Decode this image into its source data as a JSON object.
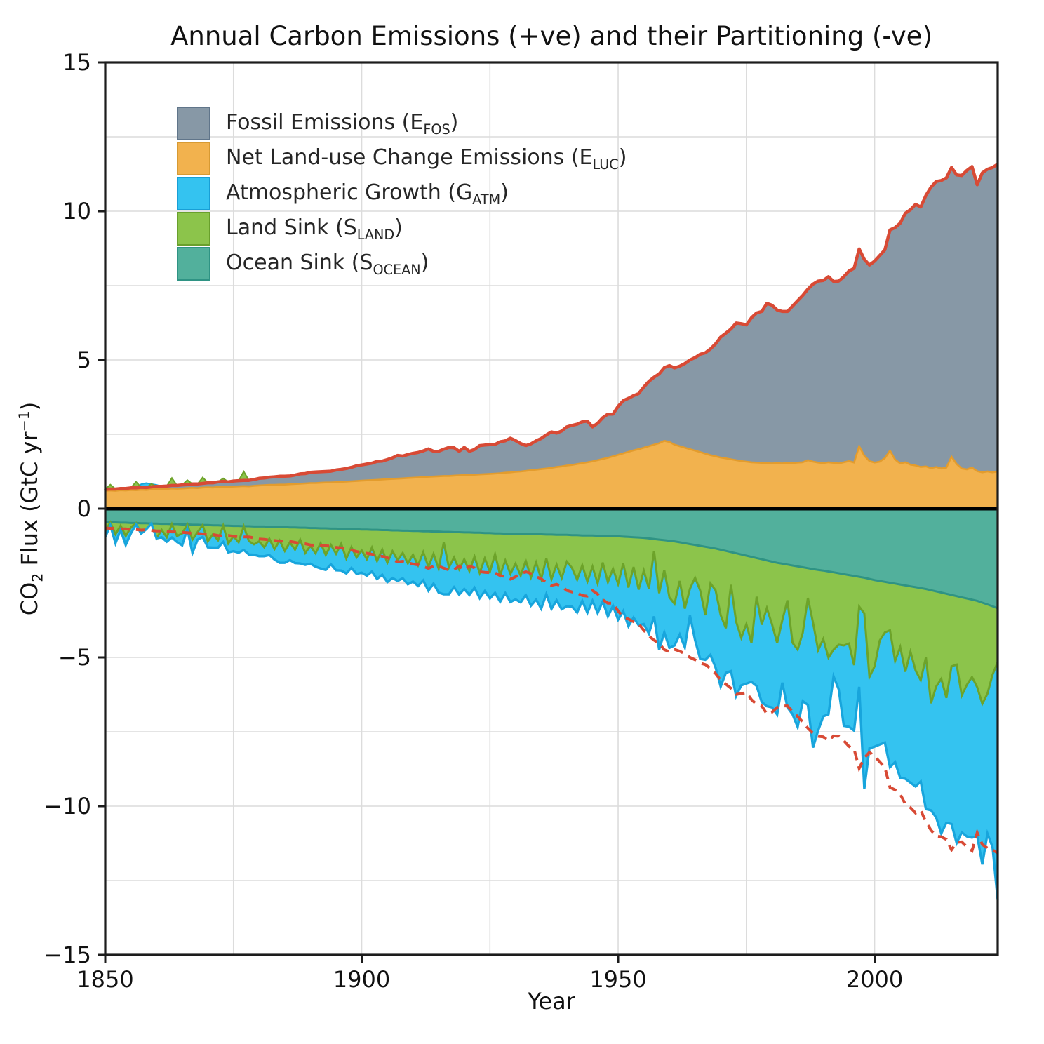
{
  "page": {
    "title": "Annual Carbon Emissions (+ve) and their Partitioning (-ve)"
  },
  "axes": {
    "x_label": "Year",
    "y_label_parts": {
      "pre": "CO",
      "sub": "2",
      "mid": " Flux (GtC yr",
      "sup": "−1",
      "post": ")"
    },
    "x_tick_values": [
      1850,
      1900,
      1950,
      2000
    ],
    "x_tick_labels": [
      "1850",
      "1900",
      "1950",
      "2000"
    ],
    "y_tick_values": [
      15,
      10,
      5,
      0,
      -5,
      -10,
      -15
    ],
    "y_tick_labels": [
      "15",
      "10",
      "5",
      "0",
      "−5",
      "−10",
      "−15"
    ],
    "x_gridlines": [
      1875,
      1900,
      1925,
      1950,
      1975,
      2000
    ],
    "y_gridlines": [
      -12.5,
      -10,
      -7.5,
      -5,
      -2.5,
      2.5,
      5,
      7.5,
      10,
      12.5
    ],
    "grid_color": "#dcdcdc",
    "spine_color": "#1c1c1c",
    "zero_line_color": "#000000"
  },
  "legend": {
    "items": [
      {
        "key": "fos",
        "pre": "Fossil Emissions (E",
        "sub": "FOS",
        "post": ")",
        "color": "#8798a6",
        "edge": "#60758a"
      },
      {
        "key": "luc",
        "pre": "Net Land-use Change Emissions (E",
        "sub": "LUC",
        "post": ")",
        "color": "#f2b24e",
        "edge": "#d79a33"
      },
      {
        "key": "atm",
        "pre": "Atmospheric Growth (G",
        "sub": "ATM",
        "post": ")",
        "color": "#34c3f0",
        "edge": "#189fd6"
      },
      {
        "key": "land",
        "pre": "Land Sink (S",
        "sub": "LAND",
        "post": ")",
        "color": "#8cc44b",
        "edge": "#69a02c"
      },
      {
        "key": "ocean",
        "pre": "Ocean Sink (S",
        "sub": "OCEAN",
        "post": ")",
        "color": "#52b09c",
        "edge": "#2f9384"
      }
    ]
  },
  "chart_data": {
    "type": "area",
    "title": "Annual Carbon Emissions (+ve) and their Partitioning (-ve)",
    "xlabel": "Year",
    "ylabel": "CO2 Flux (GtC yr-1)",
    "x_start": 1850,
    "x_end": 2024,
    "xlim": [
      1850,
      2024
    ],
    "ylim": [
      -15,
      15
    ],
    "grid": true,
    "legend_position": "upper-left",
    "stacking_note": "Positive stack: E_LUC then E_FOS above it. Negative stack (plotted as negatives): S_OCEAN, then S_LAND, then G_ATM deepest. Years where S_LAND or G_ATM are negative appear as small green/blue wedges above the positive stack. Solid red line = E_FOS+E_LUC (total emissions); dashed red line = -(E_FOS+E_LUC).",
    "total_line_color": "#d84a35",
    "series": [
      {
        "key": "fos",
        "name": "Fossil Emissions (E_FOS)",
        "side": "positive",
        "color": "#8798a6",
        "edge": null,
        "values": [
          0.05,
          0.05,
          0.06,
          0.06,
          0.07,
          0.07,
          0.08,
          0.08,
          0.08,
          0.08,
          0.09,
          0.1,
          0.1,
          0.1,
          0.11,
          0.12,
          0.12,
          0.13,
          0.14,
          0.14,
          0.15,
          0.16,
          0.17,
          0.18,
          0.17,
          0.19,
          0.19,
          0.19,
          0.2,
          0.21,
          0.24,
          0.24,
          0.26,
          0.27,
          0.28,
          0.28,
          0.28,
          0.3,
          0.33,
          0.33,
          0.36,
          0.37,
          0.37,
          0.37,
          0.38,
          0.41,
          0.42,
          0.44,
          0.47,
          0.51,
          0.53,
          0.55,
          0.57,
          0.62,
          0.62,
          0.66,
          0.71,
          0.78,
          0.75,
          0.79,
          0.82,
          0.84,
          0.88,
          0.94,
          0.85,
          0.84,
          0.9,
          0.96,
          0.94,
          0.81,
          0.93,
          0.8,
          0.85,
          0.97,
          0.98,
          0.98,
          0.98,
          1.06,
          1.07,
          1.15,
          1.05,
          0.94,
          0.85,
          0.89,
          0.97,
          1.03,
          1.13,
          1.21,
          1.14,
          1.19,
          1.3,
          1.33,
          1.34,
          1.39,
          1.38,
          1.16,
          1.24,
          1.39,
          1.47,
          1.42,
          1.63,
          1.77,
          1.8,
          1.84,
          1.87,
          2.04,
          2.18,
          2.27,
          2.33,
          2.46,
          2.57,
          2.58,
          2.69,
          2.83,
          3.0,
          3.13,
          3.29,
          3.39,
          3.57,
          3.78,
          4.05,
          4.21,
          4.38,
          4.61,
          4.62,
          4.6,
          4.86,
          5.03,
          5.09,
          5.37,
          5.32,
          5.15,
          5.11,
          5.09,
          5.28,
          5.44,
          5.61,
          5.75,
          5.97,
          6.1,
          6.14,
          6.24,
          6.1,
          6.13,
          6.24,
          6.39,
          6.53,
          6.63,
          6.6,
          6.59,
          6.77,
          6.93,
          7.0,
          7.42,
          7.8,
          8.08,
          8.37,
          8.57,
          8.78,
          8.74,
          9.11,
          9.45,
          9.6,
          9.68,
          9.74,
          9.72,
          9.72,
          9.85,
          10.05,
          10.12,
          9.63,
          10.07,
          10.16,
          10.25,
          10.33
        ]
      },
      {
        "key": "luc",
        "name": "Net Land-use Change Emissions (E_LUC)",
        "side": "positive",
        "color": "#f2b24e",
        "edge": "#e39c2d",
        "values": [
          0.6,
          0.61,
          0.6,
          0.62,
          0.61,
          0.63,
          0.62,
          0.64,
          0.63,
          0.65,
          0.66,
          0.65,
          0.66,
          0.68,
          0.67,
          0.68,
          0.69,
          0.7,
          0.69,
          0.71,
          0.72,
          0.71,
          0.73,
          0.74,
          0.73,
          0.74,
          0.75,
          0.76,
          0.75,
          0.77,
          0.78,
          0.79,
          0.8,
          0.8,
          0.81,
          0.81,
          0.82,
          0.83,
          0.84,
          0.85,
          0.86,
          0.86,
          0.87,
          0.88,
          0.88,
          0.89,
          0.9,
          0.91,
          0.92,
          0.93,
          0.94,
          0.95,
          0.96,
          0.97,
          0.98,
          0.99,
          1.0,
          1.01,
          1.02,
          1.03,
          1.04,
          1.05,
          1.06,
          1.07,
          1.08,
          1.09,
          1.1,
          1.1,
          1.11,
          1.12,
          1.13,
          1.13,
          1.14,
          1.15,
          1.16,
          1.17,
          1.18,
          1.19,
          1.21,
          1.22,
          1.24,
          1.25,
          1.27,
          1.29,
          1.31,
          1.33,
          1.35,
          1.37,
          1.4,
          1.42,
          1.45,
          1.47,
          1.5,
          1.53,
          1.56,
          1.59,
          1.63,
          1.67,
          1.71,
          1.76,
          1.81,
          1.86,
          1.91,
          1.96,
          2.0,
          2.05,
          2.1,
          2.15,
          2.2,
          2.28,
          2.24,
          2.15,
          2.1,
          2.05,
          2.0,
          1.95,
          1.9,
          1.85,
          1.8,
          1.76,
          1.72,
          1.69,
          1.66,
          1.63,
          1.6,
          1.58,
          1.56,
          1.55,
          1.54,
          1.53,
          1.52,
          1.53,
          1.52,
          1.54,
          1.53,
          1.55,
          1.56,
          1.63,
          1.58,
          1.55,
          1.53,
          1.56,
          1.54,
          1.52,
          1.56,
          1.6,
          1.55,
          2.1,
          1.78,
          1.6,
          1.55,
          1.58,
          1.7,
          1.95,
          1.65,
          1.52,
          1.56,
          1.48,
          1.45,
          1.4,
          1.42,
          1.36,
          1.4,
          1.35,
          1.38,
          1.75,
          1.5,
          1.35,
          1.32,
          1.38,
          1.26,
          1.22,
          1.25,
          1.22,
          1.25
        ]
      },
      {
        "key": "atm",
        "name": "Atmospheric Growth (G_ATM)",
        "side": "negative",
        "color": "#34c3f0",
        "edge": "#18a5dc",
        "values": [
          0.2,
          0.1,
          0.3,
          0.15,
          0.3,
          0.2,
          0.05,
          -0.1,
          -0.15,
          -0.1,
          -0.05,
          0.25,
          0.15,
          0.45,
          0.2,
          0.4,
          0.15,
          0.45,
          0.25,
          0.4,
          0.2,
          0.45,
          0.25,
          0.55,
          0.3,
          0.5,
          0.35,
          0.8,
          0.45,
          0.35,
          0.5,
          0.3,
          0.55,
          0.35,
          0.75,
          0.4,
          0.6,
          0.45,
          0.8,
          0.4,
          0.6,
          0.45,
          0.85,
          0.5,
          0.65,
          0.55,
          0.9,
          0.5,
          0.7,
          0.55,
          0.75,
          0.55,
          0.8,
          0.6,
          0.85,
          0.65,
          0.9,
          0.7,
          0.85,
          0.7,
          0.9,
          0.7,
          0.95,
          0.8,
          1.0,
          0.8,
          1.75,
          0.9,
          1.0,
          0.85,
          1.0,
          0.8,
          1.05,
          0.85,
          1.1,
          0.9,
          1.3,
          0.9,
          1.1,
          0.95,
          1.2,
          0.9,
          1.15,
          0.95,
          1.25,
          1.0,
          1.2,
          1.0,
          1.2,
          1.05,
          1.5,
          1.3,
          1.1,
          1.2,
          1.05,
          1.15,
          1.0,
          1.3,
          1.15,
          1.25,
          1.2,
          1.6,
          1.3,
          1.7,
          1.2,
          1.8,
          1.5,
          2.2,
          1.9,
          2.1,
          1.7,
          1.4,
          1.8,
          1.3,
          0.9,
          2.1,
          2.3,
          1.5,
          2.4,
          2.6,
          2.4,
          1.5,
          2.9,
          2.5,
          1.6,
          2.0,
          1.3,
          3.0,
          2.6,
          3.3,
          2.8,
          2.4,
          2.1,
          3.6,
          2.4,
          2.6,
          2.3,
          3.6,
          4.2,
          2.7,
          2.6,
          1.9,
          0.9,
          1.5,
          2.7,
          2.8,
          2.2,
          2.7,
          5.9,
          2.4,
          2.7,
          3.5,
          3.7,
          4.6,
          3.4,
          4.4,
          3.6,
          4.4,
          3.9,
          3.4,
          5.1,
          3.6,
          4.4,
          5.2,
          4.2,
          5.3,
          6.0,
          4.6,
          5.1,
          5.4,
          5.0,
          5.4,
          4.7,
          5.8,
          8.0
        ]
      },
      {
        "key": "land",
        "name": "Land Sink (S_LAND)",
        "side": "negative",
        "color": "#8cc44b",
        "edge": "#6da32a",
        "values": [
          0.3,
          -0.15,
          0.4,
          0.1,
          0.45,
          0.15,
          -0.2,
          0.35,
          0.2,
          -0.1,
          0.5,
          0.2,
          0.45,
          -0.25,
          0.4,
          0.3,
          -0.15,
          0.5,
          0.25,
          -0.2,
          0.55,
          0.3,
          0.5,
          -0.1,
          0.6,
          0.35,
          0.55,
          -0.3,
          0.5,
          0.6,
          0.5,
          0.7,
          0.4,
          0.75,
          0.45,
          0.8,
          0.5,
          0.75,
          0.4,
          0.85,
          0.6,
          0.85,
          0.5,
          0.9,
          0.55,
          0.85,
          0.5,
          1.0,
          0.6,
          0.95,
          0.7,
          1.0,
          0.6,
          1.05,
          0.65,
          1.1,
          0.7,
          1.0,
          0.75,
          1.1,
          0.8,
          1.15,
          0.7,
          1.2,
          0.75,
          1.25,
          0.35,
          1.2,
          0.85,
          1.25,
          0.9,
          1.3,
          0.8,
          1.35,
          0.85,
          1.3,
          0.7,
          1.4,
          0.9,
          1.35,
          1.0,
          1.4,
          0.9,
          1.45,
          0.95,
          1.5,
          0.8,
          1.5,
          1.0,
          1.45,
          0.9,
          1.1,
          1.5,
          1.0,
          1.55,
          1.05,
          1.6,
          0.9,
          1.55,
          1.1,
          1.6,
          0.9,
          1.7,
          1.0,
          1.75,
          1.1,
          1.7,
          0.4,
          1.8,
          1.0,
          1.9,
          2.1,
          1.3,
          2.2,
          1.5,
          1.1,
          1.5,
          2.3,
          1.2,
          1.4,
          2.2,
          2.6,
          1.1,
          2.3,
          2.8,
          2.3,
          2.9,
          1.3,
          2.2,
          1.6,
          2.1,
          2.7,
          1.9,
          1.2,
          2.6,
          2.8,
          2.2,
          1.0,
          1.8,
          2.7,
          2.3,
          2.9,
          2.6,
          2.4,
          2.4,
          2.3,
          3.0,
          1.0,
          1.2,
          3.3,
          2.9,
          2.0,
          1.7,
          1.6,
          2.6,
          2.1,
          2.9,
          2.2,
          2.8,
          3.1,
          2.3,
          3.8,
          3.2,
          2.9,
          3.5,
          2.4,
          2.3,
          3.3,
          2.9,
          2.6,
          2.9,
          3.4,
          3.0,
          2.3,
          1.8
        ]
      },
      {
        "key": "ocean",
        "name": "Ocean Sink (S_OCEAN)",
        "side": "negative",
        "color": "#52b09c",
        "edge": "#2f9384",
        "values": [
          0.45,
          0.46,
          0.46,
          0.47,
          0.47,
          0.48,
          0.48,
          0.49,
          0.49,
          0.5,
          0.5,
          0.51,
          0.51,
          0.52,
          0.52,
          0.53,
          0.53,
          0.54,
          0.54,
          0.55,
          0.55,
          0.56,
          0.56,
          0.57,
          0.57,
          0.58,
          0.58,
          0.59,
          0.59,
          0.6,
          0.6,
          0.6,
          0.61,
          0.61,
          0.62,
          0.62,
          0.63,
          0.63,
          0.64,
          0.64,
          0.65,
          0.65,
          0.66,
          0.66,
          0.67,
          0.67,
          0.68,
          0.68,
          0.69,
          0.69,
          0.7,
          0.7,
          0.71,
          0.71,
          0.72,
          0.72,
          0.73,
          0.73,
          0.74,
          0.74,
          0.75,
          0.75,
          0.76,
          0.76,
          0.77,
          0.77,
          0.78,
          0.78,
          0.79,
          0.79,
          0.8,
          0.8,
          0.81,
          0.81,
          0.82,
          0.82,
          0.83,
          0.83,
          0.84,
          0.84,
          0.85,
          0.85,
          0.85,
          0.86,
          0.86,
          0.86,
          0.87,
          0.87,
          0.88,
          0.88,
          0.88,
          0.89,
          0.89,
          0.9,
          0.9,
          0.9,
          0.91,
          0.91,
          0.92,
          0.92,
          0.93,
          0.94,
          0.95,
          0.96,
          0.97,
          0.98,
          1.0,
          1.02,
          1.04,
          1.06,
          1.08,
          1.1,
          1.13,
          1.16,
          1.19,
          1.22,
          1.25,
          1.28,
          1.31,
          1.34,
          1.38,
          1.42,
          1.46,
          1.5,
          1.54,
          1.58,
          1.62,
          1.66,
          1.7,
          1.74,
          1.78,
          1.82,
          1.85,
          1.88,
          1.91,
          1.94,
          1.97,
          2.0,
          2.03,
          2.06,
          2.08,
          2.11,
          2.14,
          2.17,
          2.2,
          2.23,
          2.26,
          2.29,
          2.32,
          2.36,
          2.4,
          2.43,
          2.46,
          2.49,
          2.52,
          2.55,
          2.58,
          2.61,
          2.64,
          2.67,
          2.7,
          2.74,
          2.78,
          2.82,
          2.86,
          2.9,
          2.94,
          2.98,
          3.02,
          3.06,
          3.1,
          3.16,
          3.22,
          3.28,
          3.35
        ]
      }
    ]
  }
}
